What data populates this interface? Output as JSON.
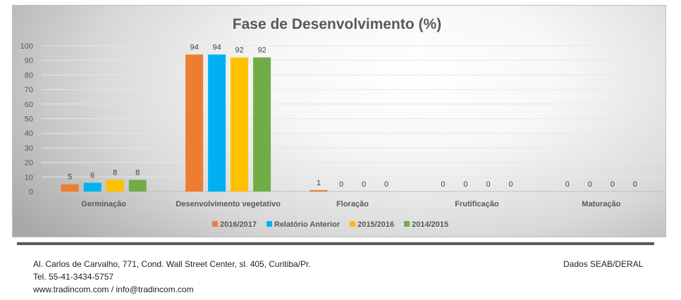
{
  "chart_data": {
    "type": "bar",
    "title": "Fase de Desenvolvimento (%)",
    "categories": [
      "Germinação",
      "Desenvolvimento vegetativo",
      "Floração",
      "Frutificação",
      "Maturação"
    ],
    "series": [
      {
        "name": "2016/2017",
        "color": "#ED7D31",
        "values": [
          5,
          94,
          1,
          0,
          0
        ]
      },
      {
        "name": "Relatório Anterior",
        "color": "#00B0F0",
        "values": [
          6,
          94,
          0,
          0,
          0
        ]
      },
      {
        "name": "2015/2016",
        "color": "#FFC000",
        "values": [
          8,
          92,
          0,
          0,
          0
        ]
      },
      {
        "name": "2014/2015",
        "color": "#70AD47",
        "values": [
          8,
          92,
          0,
          0,
          0
        ]
      }
    ],
    "ylim": [
      0,
      100
    ],
    "yticks": [
      0,
      10,
      20,
      30,
      40,
      50,
      60,
      70,
      80,
      90,
      100
    ],
    "xlabel": "",
    "ylabel": "",
    "grid": true,
    "legend": "bottom"
  },
  "footer": {
    "address": "Al. Carlos de Carvalho, 771, Cond. Wall Street Center, sl. 405, Curitiba/Pr.",
    "phone": "Tel. 55-41-3434-5757",
    "web": "www.tradincom.com / info@tradincom.com",
    "source": "Dados SEAB/DERAL"
  }
}
